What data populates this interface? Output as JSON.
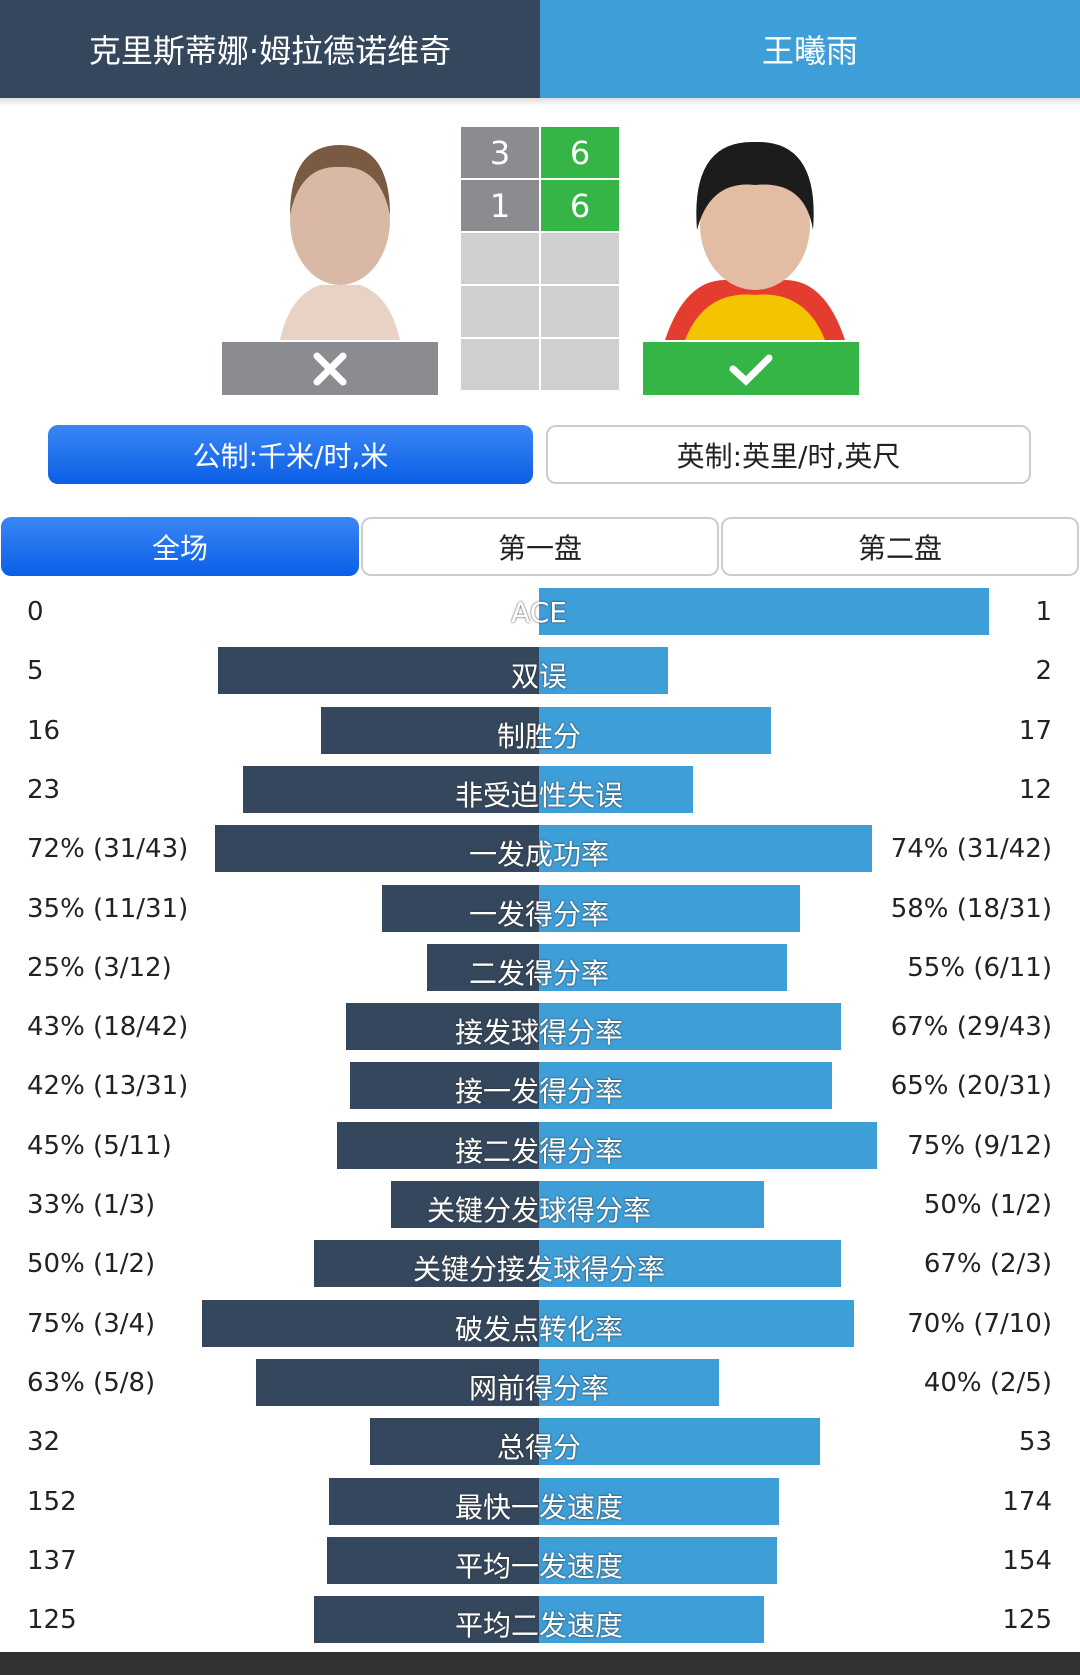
{
  "header": {
    "player1": "克里斯蒂娜·姆拉德诺维奇",
    "player2": "王曦雨"
  },
  "score": {
    "sets": [
      [
        3,
        6
      ],
      [
        1,
        6
      ]
    ],
    "empty_sets": 3
  },
  "units": {
    "metric": "公制:千米/时,米",
    "imperial": "英制:英里/时,英尺"
  },
  "tabs": [
    "全场",
    "第一盘",
    "第二盘"
  ],
  "stats": [
    {
      "label": "ACE",
      "left": 0,
      "right": 1
    },
    {
      "label": "双误",
      "left": 5,
      "right": 2
    },
    {
      "label": "制胜分",
      "left": 16,
      "right": 17
    },
    {
      "label": "非受迫性失误",
      "left": 23,
      "right": 12
    },
    {
      "label": "一发成功率",
      "left": 72,
      "right": 74,
      "left_label": "72% (31/43)",
      "right_label": "74% (31/42)"
    },
    {
      "label": "一发得分率",
      "left": 35,
      "right": 58,
      "left_label": "35% (11/31)",
      "right_label": "58% (18/31)"
    },
    {
      "label": "二发得分率",
      "left": 25,
      "right": 55,
      "left_label": "25% (3/12)",
      "right_label": "55% (6/11)"
    },
    {
      "label": "接发球得分率",
      "left": 43,
      "right": 67,
      "left_label": "43% (18/42)",
      "right_label": "67% (29/43)"
    },
    {
      "label": "接一发得分率",
      "left": 42,
      "right": 65,
      "left_label": "42% (13/31)",
      "right_label": "65% (20/31)"
    },
    {
      "label": "接二发得分率",
      "left": 45,
      "right": 75,
      "left_label": "45% (5/11)",
      "right_label": "75% (9/12)"
    },
    {
      "label": "关键分发球得分率",
      "left": 33,
      "right": 50,
      "left_label": "33% (1/3)",
      "right_label": "50% (1/2)"
    },
    {
      "label": "关键分接发球得分率",
      "left": 50,
      "right": 67,
      "left_label": "50% (1/2)",
      "right_label": "67% (2/3)"
    },
    {
      "label": "破发点转化率",
      "left": 75,
      "right": 70,
      "left_label": "75% (3/4)",
      "right_label": "70% (7/10)"
    },
    {
      "label": "网前得分率",
      "left": 63,
      "right": 40,
      "left_label": "63% (5/8)",
      "right_label": "40% (2/5)"
    },
    {
      "label": "总得分",
      "left": 32,
      "right": 53
    },
    {
      "label": "最快一发速度",
      "left": 152,
      "right": 174
    },
    {
      "label": "平均一发速度",
      "left": 137,
      "right": 154
    },
    {
      "label": "平均二发速度",
      "left": 125,
      "right": 125
    }
  ]
}
